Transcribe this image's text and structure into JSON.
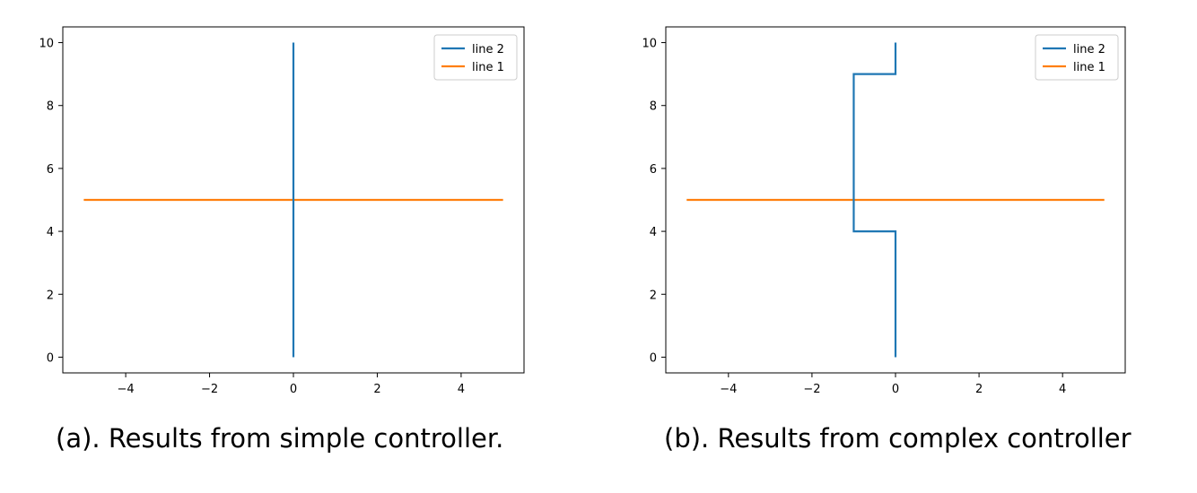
{
  "chart_data": [
    {
      "type": "line",
      "caption": "(a). Results from simple controller.",
      "x_ticks": [
        -4,
        -2,
        0,
        2,
        4
      ],
      "y_ticks": [
        0,
        2,
        4,
        6,
        8,
        10
      ],
      "xlim": [
        -5.5,
        5.5
      ],
      "ylim": [
        -0.5,
        10.5
      ],
      "legend_position": "top-right",
      "series": [
        {
          "name": "line 2",
          "color": "#1f77b4",
          "x": [
            0,
            0
          ],
          "y": [
            0,
            10
          ]
        },
        {
          "name": "line 1",
          "color": "#ff7f0e",
          "x": [
            -5,
            5
          ],
          "y": [
            5,
            5
          ]
        }
      ]
    },
    {
      "type": "line",
      "caption": "(b). Results from complex controller",
      "x_ticks": [
        -4,
        -2,
        0,
        2,
        4
      ],
      "y_ticks": [
        0,
        2,
        4,
        6,
        8,
        10
      ],
      "xlim": [
        -5.5,
        5.5
      ],
      "ylim": [
        -0.5,
        10.5
      ],
      "legend_position": "top-right",
      "series": [
        {
          "name": "line 2",
          "color": "#1f77b4",
          "x": [
            0,
            0,
            -1,
            -1,
            0,
            0
          ],
          "y": [
            0,
            4,
            4,
            9,
            9,
            10
          ]
        },
        {
          "name": "line 1",
          "color": "#ff7f0e",
          "x": [
            -5,
            5
          ],
          "y": [
            5,
            5
          ]
        }
      ]
    }
  ]
}
